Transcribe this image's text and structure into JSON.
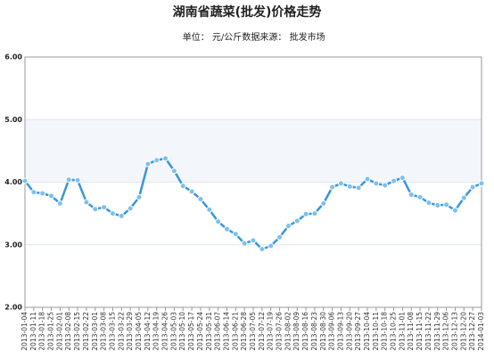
{
  "chart_data": {
    "type": "line",
    "title": "湖南省蔬菜(批发)价格走势",
    "unit": "单位： 元/公斤",
    "source": "数据来源： 批发市场",
    "x": [
      "2013-01-04",
      "2013-01-11",
      "2013-01-18",
      "2013-01-25",
      "2013-02-01",
      "2013-02-08",
      "2013-02-15",
      "2013-02-22",
      "2013-03-01",
      "2013-03-08",
      "2013-03-15",
      "2013-03-22",
      "2013-03-29",
      "2013-04-05",
      "2013-04-12",
      "2013-04-19",
      "2013-04-26",
      "2013-05-03",
      "2013-05-10",
      "2013-05-17",
      "2013-05-24",
      "2013-05-31",
      "2013-06-07",
      "2013-06-14",
      "2013-06-21",
      "2013-06-28",
      "2013-07-05",
      "2013-07-12",
      "2013-07-19",
      "2013-07-26",
      "2013-08-02",
      "2013-08-09",
      "2013-08-16",
      "2013-08-23",
      "2013-08-30",
      "2013-09-06",
      "2013-09-13",
      "2013-09-20",
      "2013-09-27",
      "2013-10-04",
      "2013-10-11",
      "2013-10-18",
      "2013-10-25",
      "2013-11-01",
      "2013-11-08",
      "2013-11-15",
      "2013-11-22",
      "2013-11-29",
      "2013-12-06",
      "2013-12-13",
      "2013-12-20",
      "2013-12-27",
      "2014-01-03"
    ],
    "values": [
      4.02,
      3.84,
      3.82,
      3.78,
      3.66,
      4.04,
      4.03,
      3.68,
      3.57,
      3.6,
      3.5,
      3.46,
      3.58,
      3.76,
      4.29,
      4.35,
      4.38,
      4.18,
      3.94,
      3.85,
      3.73,
      3.56,
      3.37,
      3.25,
      3.17,
      3.02,
      3.07,
      2.93,
      2.98,
      3.12,
      3.3,
      3.38,
      3.49,
      3.5,
      3.66,
      3.92,
      3.98,
      3.93,
      3.91,
      4.05,
      3.98,
      3.95,
      4.02,
      4.07,
      3.8,
      3.76,
      3.67,
      3.63,
      3.64,
      3.55,
      3.75,
      3.92,
      3.98
    ],
    "color": "#3a96d8",
    "ylim": [
      2,
      6
    ],
    "yticks": [
      {
        "value": 2,
        "label": "2.00"
      },
      {
        "value": 3,
        "label": "3.00"
      },
      {
        "value": 4,
        "label": "4.00"
      },
      {
        "value": 5,
        "label": "5.00"
      },
      {
        "value": 6,
        "label": "6.00"
      }
    ],
    "grid": true
  }
}
